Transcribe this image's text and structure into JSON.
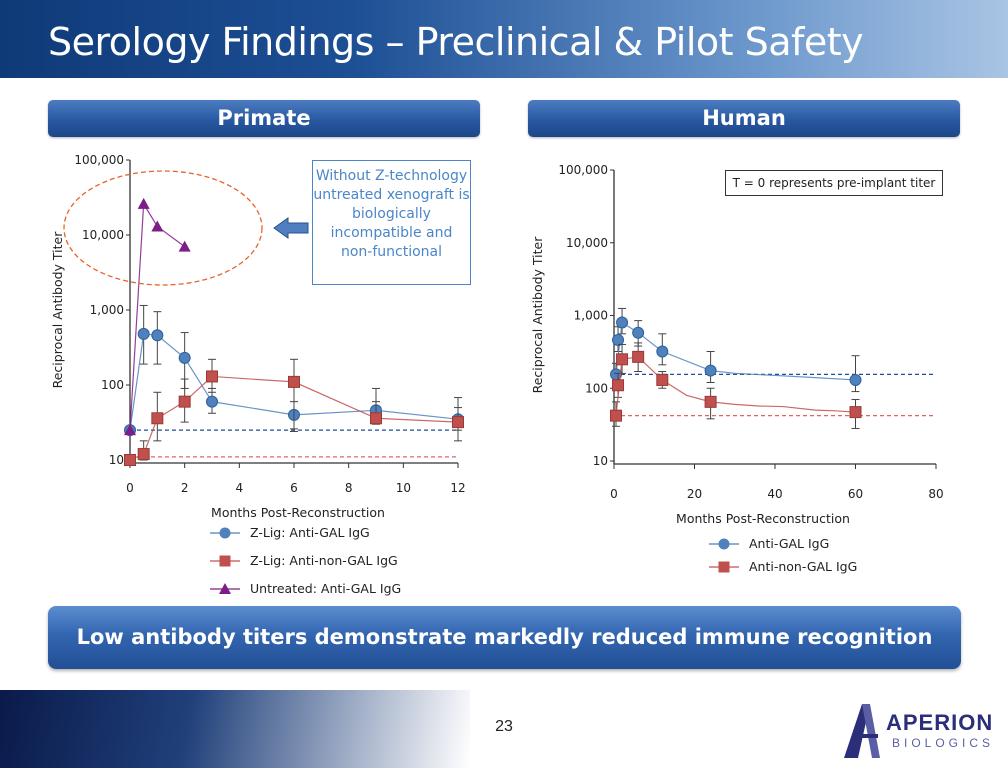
{
  "slide": {
    "title": "Serology Findings – Preclinical & Pilot Safety",
    "page_number": "23",
    "banner": "Low antibody titers demonstrate markedly reduced immune recognition",
    "logo": {
      "word1": "APERION",
      "word2": "BIOLOGICS"
    },
    "colors": {
      "blue_series": "#4f81bd",
      "red_series": "#c0504d",
      "purple_series": "#7f1d88",
      "title_blue": "#1d4f95"
    }
  },
  "left_panel": {
    "header": "Primate",
    "callout": "Without Z-technology untreated xenograft is biologically incompatible and non-functional",
    "arrow_icon": "left-arrow-icon"
  },
  "right_panel": {
    "header": "Human",
    "note": "T = 0 represents pre-implant titer"
  },
  "chart_data": [
    {
      "type": "line",
      "title": "Primate",
      "xlabel": "Months Post-Reconstruction",
      "ylabel": "Reciprocal Antibody Titer",
      "yscale": "log",
      "xlim": [
        0,
        12
      ],
      "ylim": [
        10,
        100000
      ],
      "x_ticks": [
        0,
        2,
        4,
        6,
        8,
        10,
        12
      ],
      "x_tick_labels": [
        "0",
        "2",
        "4",
        "6",
        "8",
        "10",
        "12"
      ],
      "y_ticks": [
        10,
        100,
        1000,
        10000,
        100000
      ],
      "y_tick_labels": [
        "10",
        "100",
        "1,000",
        "10,000",
        "100,000"
      ],
      "reference_lines": [
        {
          "y": 25,
          "color": "#1f4e9a"
        },
        {
          "y": 11,
          "color": "#e06666"
        }
      ],
      "series": [
        {
          "name": "Z-Lig:  Anti-GAL IgG",
          "color": "#4f81bd",
          "marker": "circle",
          "x": [
            0,
            0.5,
            1,
            2,
            3,
            6,
            9,
            12
          ],
          "y": [
            25,
            480,
            460,
            230,
            60,
            40,
            46,
            35
          ],
          "err_high": [
            28,
            1150,
            950,
            500,
            90,
            60,
            90,
            68
          ],
          "err_low": [
            22,
            190,
            190,
            90,
            42,
            24,
            34,
            25
          ]
        },
        {
          "name": "Z-Lig:  Anti-non-GAL IgG",
          "color": "#c0504d",
          "marker": "square",
          "x": [
            0,
            0.5,
            1,
            2,
            3,
            6,
            9,
            12
          ],
          "y": [
            10,
            12,
            36,
            60,
            130,
            110,
            36,
            32
          ],
          "err_high": [
            11,
            18,
            80,
            120,
            220,
            220,
            60,
            50
          ],
          "err_low": [
            9,
            10,
            18,
            32,
            80,
            26,
            30,
            18
          ]
        },
        {
          "name": "Untreated:  Anti-GAL IgG",
          "color": "#7f1d88",
          "marker": "triangle",
          "x": [
            0,
            0.5,
            1,
            2
          ],
          "y": [
            25,
            26000,
            13000,
            7000
          ]
        }
      ]
    },
    {
      "type": "line",
      "title": "Human",
      "xlabel": "Months Post-Reconstruction",
      "ylabel": "Reciprocal Antibody Titer",
      "yscale": "log",
      "xlim": [
        0,
        80
      ],
      "ylim": [
        10,
        100000
      ],
      "x_ticks": [
        0,
        20,
        40,
        60,
        80
      ],
      "x_tick_labels": [
        "0",
        "20",
        "40",
        "60",
        "80"
      ],
      "y_ticks": [
        10,
        100,
        1000,
        10000,
        100000
      ],
      "y_tick_labels": [
        "10",
        "100",
        "1,000",
        "10,000",
        "100,000"
      ],
      "reference_lines": [
        {
          "y": 155,
          "color": "#1f4e9a"
        },
        {
          "y": 42,
          "color": "#e06666"
        }
      ],
      "series": [
        {
          "name": "Anti-GAL IgG",
          "color": "#4f81bd",
          "marker": "circle",
          "x": [
            0.5,
            1,
            2,
            6,
            12,
            24,
            60
          ],
          "y": [
            155,
            460,
            800,
            580,
            320,
            175,
            130
          ],
          "err_high": [
            220,
            700,
            1250,
            850,
            560,
            320,
            280
          ],
          "err_low": [
            100,
            320,
            560,
            380,
            210,
            120,
            90
          ],
          "trend_x": [
            0.5,
            2,
            6,
            12,
            24,
            30,
            40,
            50,
            60
          ],
          "trend_y": [
            155,
            800,
            580,
            320,
            175,
            160,
            150,
            140,
            130
          ]
        },
        {
          "name": "Anti-non-GAL IgG",
          "color": "#c0504d",
          "marker": "square",
          "x": [
            0.5,
            1,
            2,
            6,
            12,
            24,
            60
          ],
          "y": [
            42,
            110,
            250,
            270,
            130,
            65,
            47
          ],
          "err_high": [
            65,
            160,
            400,
            420,
            170,
            100,
            70
          ],
          "err_low": [
            30,
            75,
            160,
            170,
            100,
            38,
            28
          ],
          "trend_x": [
            0.5,
            2,
            6,
            12,
            18,
            24,
            30,
            36,
            42,
            50,
            55,
            60
          ],
          "trend_y": [
            42,
            250,
            270,
            130,
            80,
            65,
            60,
            57,
            56,
            50,
            49,
            47
          ]
        }
      ]
    }
  ]
}
